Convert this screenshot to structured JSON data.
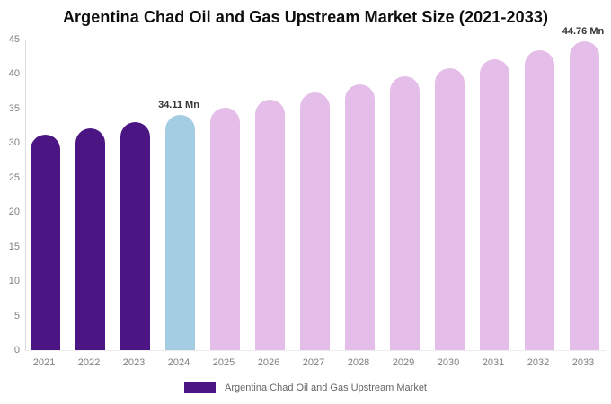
{
  "chart_data": {
    "type": "bar",
    "title": "Argentina Chad Oil and Gas Upstream Market Size (2021-2033)",
    "categories": [
      "2021",
      "2022",
      "2023",
      "2024",
      "2025",
      "2026",
      "2027",
      "2028",
      "2029",
      "2030",
      "2031",
      "2032",
      "2033"
    ],
    "values": [
      31.16,
      32.11,
      33.1,
      34.11,
      35.16,
      36.23,
      37.34,
      38.48,
      39.66,
      40.87,
      42.12,
      43.41,
      44.76
    ],
    "unit": "Mn",
    "xlabel": "",
    "ylabel": "",
    "ylim": [
      0,
      45
    ],
    "yticks": [
      0,
      5,
      10,
      15,
      20,
      25,
      30,
      35,
      40,
      45
    ],
    "grid": false,
    "bar_colors": [
      "#4B1583",
      "#4B1583",
      "#4B1583",
      "#A4CCE3",
      "#E4BEE8",
      "#E4BEE8",
      "#E4BEE8",
      "#E4BEE8",
      "#E4BEE8",
      "#E4BEE8",
      "#E4BEE8",
      "#E4BEE8",
      "#E4BEE8"
    ],
    "annotations": [
      {
        "category": "2024",
        "label": "34.11 Mn"
      },
      {
        "category": "2033",
        "label": "44.76 Mn"
      }
    ],
    "legend": {
      "label": "Argentina Chad Oil and Gas Upstream Market",
      "swatch_color": "#4B1583",
      "position": "bottom"
    }
  },
  "colors": {
    "historical_bar": "#4B1583",
    "base_year_bar": "#A4CCE3",
    "forecast_bar": "#E4BEE8",
    "axis_line": "#dcdcdc",
    "tick_label": "#808080",
    "annotation_text": "#333333",
    "legend_text": "#666666",
    "title_text": "#0d0d0d",
    "background": "#ffffff"
  }
}
